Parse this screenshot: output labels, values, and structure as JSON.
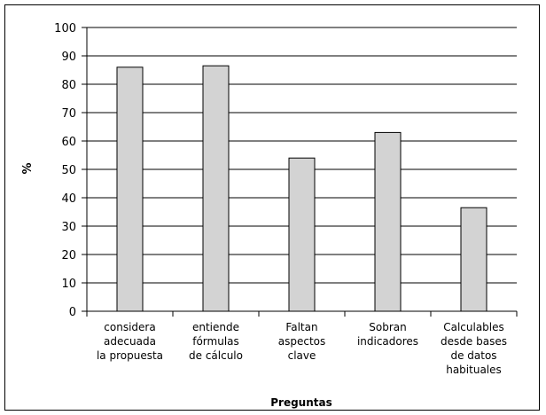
{
  "chart_data": {
    "type": "bar",
    "categories": [
      [
        "considera",
        "adecuada",
        "la propuesta"
      ],
      [
        "entiende",
        "fórmulas",
        "de cálculo"
      ],
      [
        "Faltan",
        "aspectos",
        "clave"
      ],
      [
        "Sobran",
        "indicadores"
      ],
      [
        "Calculables",
        "desde bases",
        "de datos",
        "habituales"
      ]
    ],
    "values": [
      86,
      86.5,
      54,
      63,
      36.5
    ],
    "xlabel": "Preguntas",
    "ylabel": "%",
    "ylim": [
      0,
      100
    ],
    "yticks": [
      "0",
      "10",
      "20",
      "30",
      "40",
      "50",
      "60",
      "70",
      "80",
      "90",
      "100"
    ],
    "grid": true,
    "bar_color": "#d3d3d3"
  }
}
